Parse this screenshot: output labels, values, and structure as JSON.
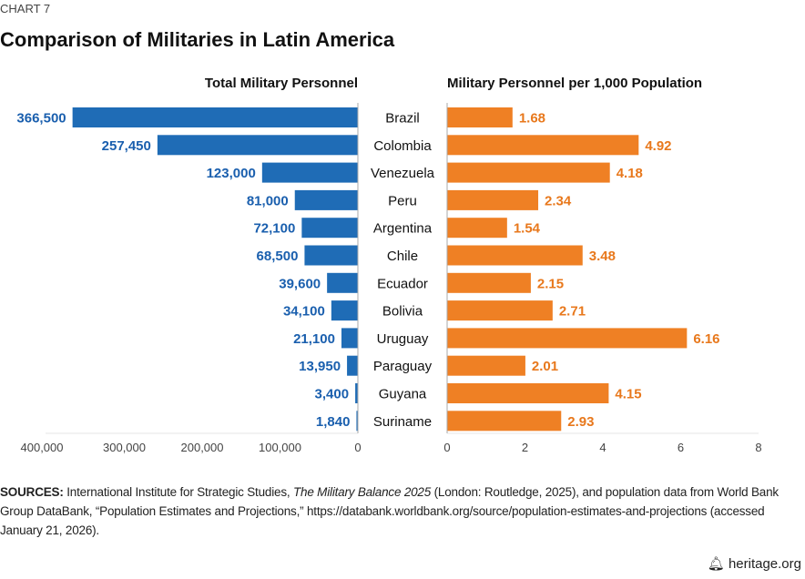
{
  "chart_label": "CHART 7",
  "chart_data": [
    {
      "type": "bar",
      "orientation": "horizontal",
      "title": "Total Military Personnel",
      "categories": [
        "Brazil",
        "Colombia",
        "Venezuela",
        "Peru",
        "Argentina",
        "Chile",
        "Ecuador",
        "Bolivia",
        "Uruguay",
        "Paraguay",
        "Guyana",
        "Suriname"
      ],
      "values": [
        366500,
        257450,
        123000,
        81000,
        72100,
        68500,
        39600,
        34100,
        21100,
        13950,
        3400,
        1840
      ],
      "value_labels": [
        "366,500",
        "257,450",
        "123,000",
        "81,000",
        "72,100",
        "68,500",
        "39,600",
        "34,100",
        "21,100",
        "13,950",
        "3,400",
        "1,840"
      ],
      "xlim": [
        0,
        400000
      ],
      "reversed": true,
      "ticks": [
        400000,
        300000,
        200000,
        100000,
        0
      ],
      "tick_labels": [
        "400,000",
        "300,000",
        "200,000",
        "100,000",
        "0"
      ],
      "color": "#1f6cb6",
      "label_color": "#1a5fae",
      "grid": false
    },
    {
      "type": "bar",
      "orientation": "horizontal",
      "title": "Military Personnel per 1,000 Population",
      "categories": [
        "Brazil",
        "Colombia",
        "Venezuela",
        "Peru",
        "Argentina",
        "Chile",
        "Ecuador",
        "Bolivia",
        "Uruguay",
        "Paraguay",
        "Guyana",
        "Suriname"
      ],
      "values": [
        1.68,
        4.92,
        4.18,
        2.34,
        1.54,
        3.48,
        2.15,
        2.71,
        6.16,
        2.01,
        4.15,
        2.93
      ],
      "value_labels": [
        "1.68",
        "4.92",
        "4.18",
        "2.34",
        "1.54",
        "3.48",
        "2.15",
        "2.71",
        "6.16",
        "2.01",
        "4.15",
        "2.93"
      ],
      "xlim": [
        0,
        8
      ],
      "ticks": [
        0,
        2,
        4,
        6,
        8
      ],
      "tick_labels": [
        "0",
        "2",
        "4",
        "6",
        "8"
      ],
      "color": "#ef8024",
      "label_color": "#e8781c",
      "grid": false
    }
  ],
  "title": "Comparison of Militaries in Latin America",
  "sources": {
    "label": "SOURCES:",
    "part1": " International Institute for Strategic Studies, ",
    "italic": "The Military Balance 2025",
    "part2": " (London: Routledge, 2025), and population data from World Bank Group DataBank, “Population Estimates and Projections,” https://databank.worldbank.org/source/population-estimates-and-projections (accessed January 21, 2026)."
  },
  "brand": {
    "icon": "liberty-bell-icon",
    "text": "heritage.org"
  }
}
